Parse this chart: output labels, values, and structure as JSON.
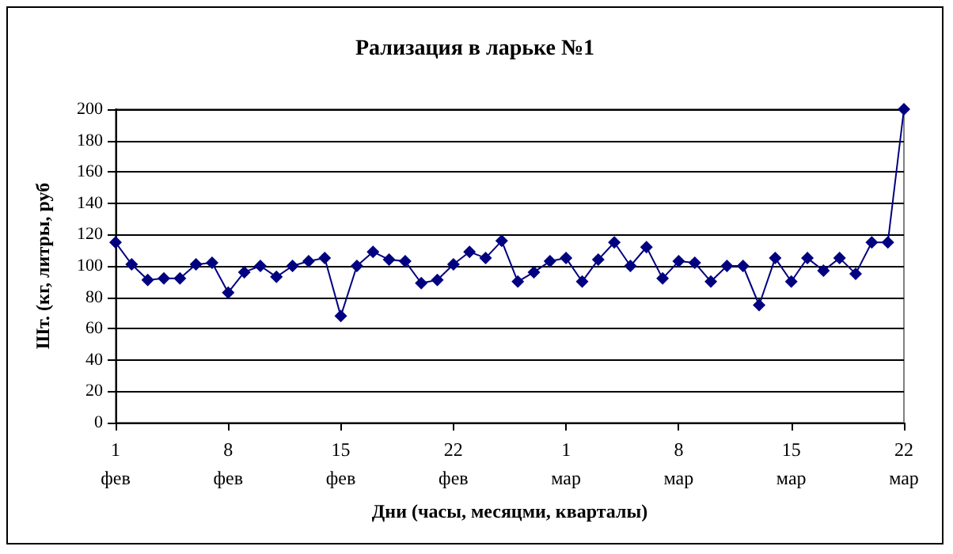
{
  "chart_data": {
    "type": "line",
    "title": "Рализация в ларьке №1",
    "xlabel": "Дни (часы, месяцми, кварталы)",
    "ylabel": "Шт. (кг, литры, руб",
    "x": [
      "--02-01",
      "--02-02",
      "--02-03",
      "--02-04",
      "--02-05",
      "--02-06",
      "--02-07",
      "--02-08",
      "--02-09",
      "--02-10",
      "--02-11",
      "--02-12",
      "--02-13",
      "--02-14",
      "--02-15",
      "--02-16",
      "--02-17",
      "--02-18",
      "--02-19",
      "--02-20",
      "--02-21",
      "--02-22",
      "--02-23",
      "--02-24",
      "--02-25",
      "--02-26",
      "--02-27",
      "--02-28",
      "--03-01",
      "--03-02",
      "--03-03",
      "--03-04",
      "--03-05",
      "--03-06",
      "--03-07",
      "--03-08",
      "--03-09",
      "--03-10",
      "--03-11",
      "--03-12",
      "--03-13",
      "--03-14",
      "--03-15",
      "--03-16",
      "--03-17",
      "--03-18",
      "--03-19",
      "--03-20",
      "--03-21",
      "--03-22"
    ],
    "series": [
      {
        "color": "#000080",
        "values": [
          115,
          101,
          91,
          92,
          92,
          101,
          102,
          83,
          96,
          100,
          93,
          100,
          103,
          105,
          68,
          100,
          109,
          104,
          103,
          89,
          91,
          101,
          109,
          105,
          116,
          90,
          96,
          103,
          105,
          90,
          104,
          115,
          100,
          112,
          92,
          103,
          102,
          90,
          100,
          100,
          75,
          105,
          90,
          105,
          97,
          105,
          95,
          115,
          115,
          200
        ]
      }
    ],
    "xlim": [
      "--02-01",
      "--03-22"
    ],
    "xticks": [
      {
        "value": "--02-01",
        "label": "1\nфев"
      },
      {
        "value": "--02-08",
        "label": "8\nфев"
      },
      {
        "value": "--02-15",
        "label": "15\nфев"
      },
      {
        "value": "--02-22",
        "label": "22\nфев"
      },
      {
        "value": "--03-01",
        "label": "1\nмар"
      },
      {
        "value": "--03-08",
        "label": "8\nмар"
      },
      {
        "value": "--03-15",
        "label": "15\nмар"
      },
      {
        "value": "--03-22",
        "label": "22\nмар"
      }
    ],
    "ylim": [
      0,
      200
    ],
    "yticks": [
      0,
      20,
      40,
      60,
      80,
      100,
      120,
      140,
      160,
      180,
      200
    ],
    "grid": "y",
    "marker": "diamond",
    "line_style": "solid"
  }
}
